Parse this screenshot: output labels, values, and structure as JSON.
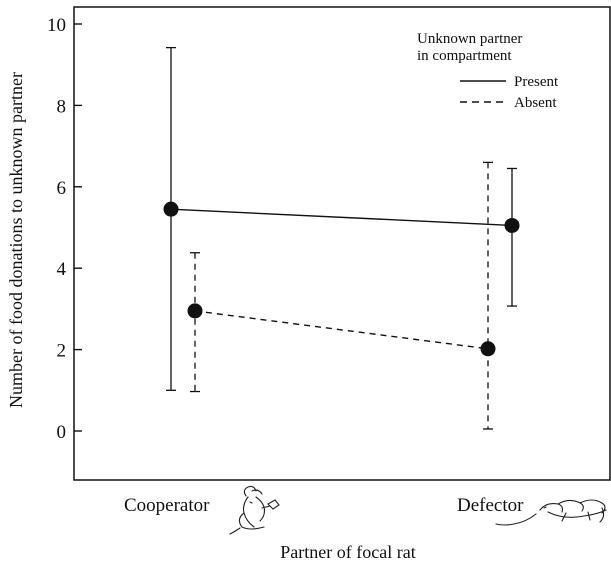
{
  "chart_data": {
    "type": "line",
    "title": "",
    "xlabel": "Partner of focal rat",
    "ylabel": "Number of food donations to unknown partner",
    "categories": [
      "Cooperator",
      "Defector"
    ],
    "ylim": [
      -1.2,
      10.3
    ],
    "yticks": [
      0,
      2,
      4,
      6,
      8,
      10
    ],
    "grid": false,
    "legend": {
      "title_line1": "Unknown partner",
      "title_line2": "in compartment",
      "placement": "top-right"
    },
    "series": [
      {
        "name": "Present",
        "line_style": "solid",
        "values": [
          5.45,
          5.05
        ],
        "err_low": [
          1.0,
          3.07
        ],
        "err_high": [
          9.42,
          6.45
        ]
      },
      {
        "name": "Absent",
        "line_style": "dashed",
        "values": [
          2.95,
          2.02
        ],
        "err_low": [
          0.97,
          0.05
        ],
        "err_high": [
          4.38,
          6.6
        ]
      }
    ],
    "category_icons": [
      "cooperator-rat-sketch",
      "defector-rat-sketch"
    ]
  }
}
